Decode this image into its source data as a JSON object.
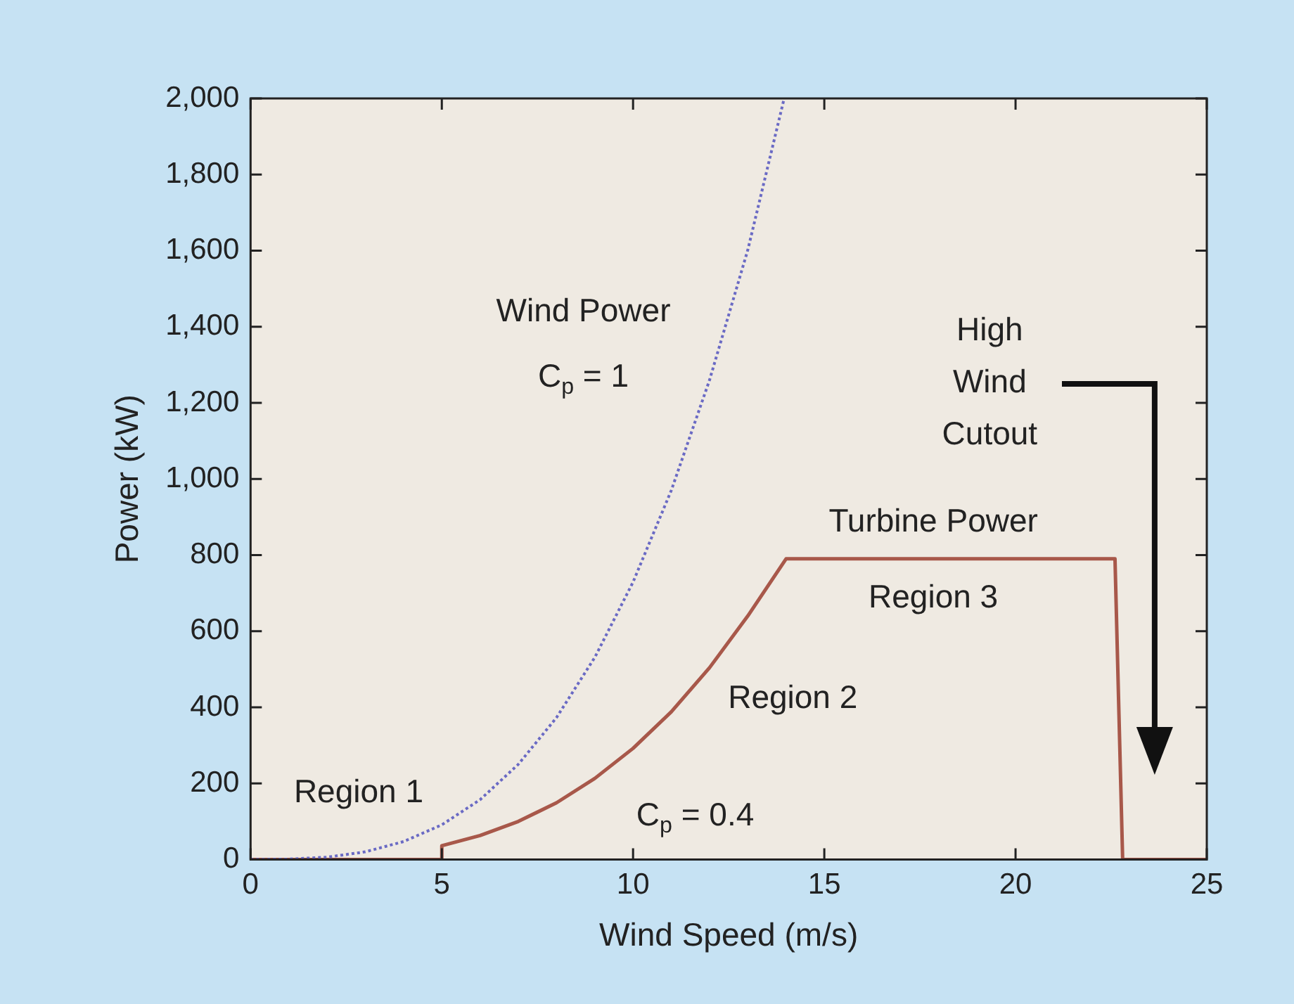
{
  "chart_data": {
    "type": "line",
    "xlabel": "Wind Speed (m/s)",
    "ylabel": "Power (kW)",
    "xlim": [
      0,
      25
    ],
    "xticks": [
      0,
      5,
      10,
      15,
      20,
      25
    ],
    "ylim": [
      0,
      2000
    ],
    "yticks": [
      {
        "value": 0,
        "label": "0"
      },
      {
        "value": 200,
        "label": "200"
      },
      {
        "value": 400,
        "label": "400"
      },
      {
        "value": 600,
        "label": "600"
      },
      {
        "value": 800,
        "label": "800"
      },
      {
        "value": 1000,
        "label": "1,000"
      },
      {
        "value": 1200,
        "label": "1,200"
      },
      {
        "value": 1400,
        "label": "1,400"
      },
      {
        "value": 1600,
        "label": "1,600"
      },
      {
        "value": 1800,
        "label": "1,800"
      },
      {
        "value": 2000,
        "label": "2,000"
      }
    ],
    "grid": false,
    "legend": false,
    "marker": "none",
    "series": [
      {
        "color": "#6a6ac4",
        "line_style": "dotted",
        "x": [
          0,
          1,
          2,
          3,
          4,
          5,
          6,
          7,
          8,
          9,
          10,
          11,
          12,
          13,
          13.95
        ],
        "values": [
          0,
          1,
          6,
          20,
          47,
          91,
          157,
          250,
          373,
          531,
          729,
          970,
          1260,
          1602,
          2000
        ]
      },
      {
        "color": "#a8584a",
        "line_style": "solid",
        "x": [
          0,
          5,
          5,
          6,
          7,
          8,
          9,
          10,
          11,
          12,
          13,
          14,
          22.6,
          22.8,
          25
        ],
        "values": [
          0,
          0,
          36,
          63,
          100,
          149,
          213,
          292,
          388,
          504,
          640,
          790,
          790,
          0,
          0
        ]
      }
    ],
    "annotations": [
      "Wind Power",
      "C$_{p}$ = 1",
      "Region 1",
      "Region 2",
      "C$_{p}$ = 0.4",
      "Turbine Power",
      "Region 3",
      "High\nWind\nCutout"
    ]
  }
}
